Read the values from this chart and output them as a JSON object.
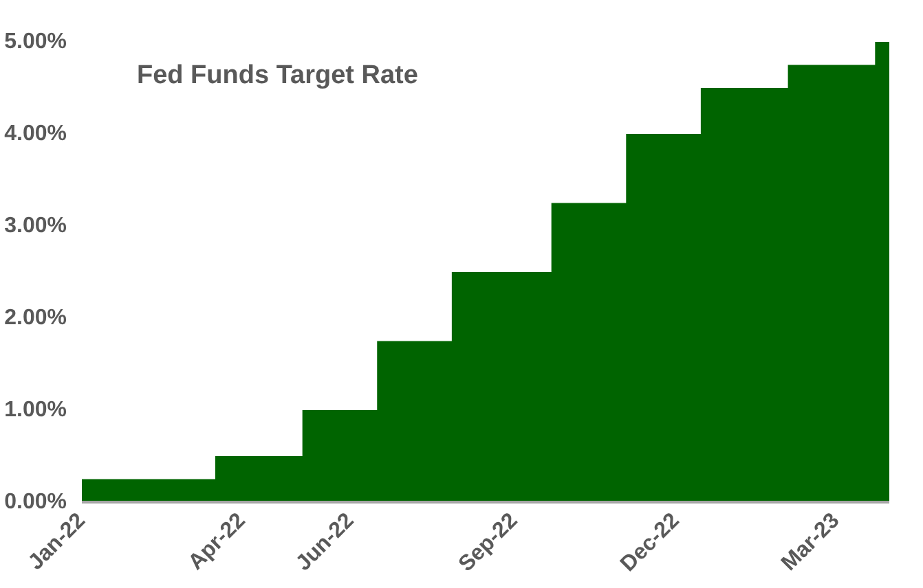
{
  "chart_data": {
    "type": "area",
    "title": "Fed Funds Target Rate",
    "x": [
      "2022-01-01",
      "2022-03-17",
      "2022-03-17",
      "2022-05-05",
      "2022-05-05",
      "2022-06-16",
      "2022-06-16",
      "2022-07-28",
      "2022-07-28",
      "2022-09-22",
      "2022-09-22",
      "2022-11-03",
      "2022-11-03",
      "2022-12-15",
      "2022-12-15",
      "2023-02-02",
      "2023-02-02",
      "2023-03-23",
      "2023-03-23",
      "2023-03-31"
    ],
    "series": [
      {
        "color": "#006400",
        "values": [
          0.25,
          0.25,
          0.5,
          0.5,
          1.0,
          1.0,
          1.75,
          1.75,
          2.5,
          2.5,
          3.25,
          3.25,
          4.0,
          4.0,
          4.5,
          4.5,
          4.75,
          4.75,
          5.0,
          5.0
        ]
      }
    ],
    "xticks": [
      {
        "value": "2022-01-01",
        "label": "Jan-22"
      },
      {
        "value": "2022-04-01",
        "label": "Apr-22"
      },
      {
        "value": "2022-06-01",
        "label": "Jun-22"
      },
      {
        "value": "2022-09-01",
        "label": "Sep-22"
      },
      {
        "value": "2022-12-01",
        "label": "Dec-22"
      },
      {
        "value": "2023-03-01",
        "label": "Mar-23"
      }
    ],
    "xlim": [
      "2022-01-01",
      "2023-03-31"
    ],
    "ylim": [
      0,
      5
    ],
    "yticks": [
      {
        "value": 0,
        "label": "0.00%"
      },
      {
        "value": 1,
        "label": "1.00%"
      },
      {
        "value": 2,
        "label": "2.00%"
      },
      {
        "value": 3,
        "label": "3.00%"
      },
      {
        "value": 4,
        "label": "4.00%"
      },
      {
        "value": 5,
        "label": "5.00%"
      }
    ],
    "grid": false
  }
}
